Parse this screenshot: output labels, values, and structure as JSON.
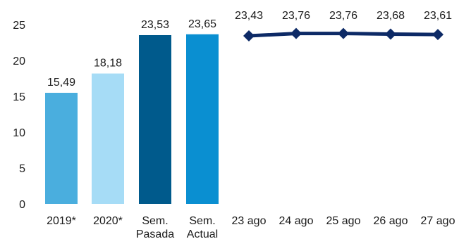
{
  "chart_data": {
    "type": "bar+line",
    "title": "",
    "xlabel": "",
    "ylabel": "",
    "ylim": [
      0,
      25
    ],
    "yticks": [
      0,
      5,
      10,
      15,
      20,
      25
    ],
    "ytick_labels": [
      "0",
      "5",
      "10",
      "15",
      "20",
      "25"
    ],
    "grid": false,
    "legend": "none",
    "bars": {
      "categories": [
        {
          "lines": [
            "2019*"
          ]
        },
        {
          "lines": [
            "2020*"
          ]
        },
        {
          "lines": [
            "Sem.",
            "Pasada"
          ]
        },
        {
          "lines": [
            "Sem.",
            "Actual"
          ]
        }
      ],
      "values": [
        15.49,
        18.18,
        23.53,
        23.65
      ],
      "labels": [
        "15,49",
        "18,18",
        "23,53",
        "23,65"
      ],
      "colors": [
        "#4aaede",
        "#a6dcf6",
        "#005a8c",
        "#0a8fd1"
      ]
    },
    "line": {
      "categories": [
        "23 ago",
        "24 ago",
        "25 ago",
        "26 ago",
        "27 ago"
      ],
      "values": [
        23.43,
        23.76,
        23.76,
        23.68,
        23.61
      ],
      "labels": [
        "23,43",
        "23,76",
        "23,76",
        "23,68",
        "23,61"
      ],
      "color": "#0d2a66",
      "marker": "diamond"
    }
  }
}
